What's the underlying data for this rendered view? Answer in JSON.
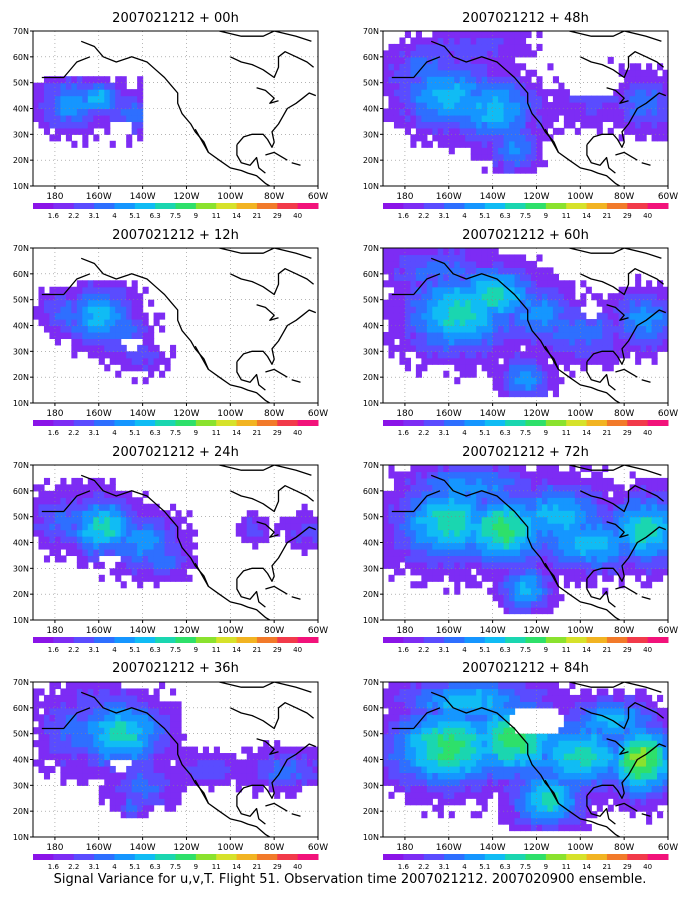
{
  "figure": {
    "caption": "Signal Variance for u,v,T. Flight 51. Observation time 2007021212. 2007020900 ensemble.",
    "lat_ticks": [
      "70N",
      "60N",
      "50N",
      "40N",
      "30N",
      "20N",
      "10N"
    ],
    "lon_ticks": [
      "180",
      "160W",
      "140W",
      "120W",
      "100W",
      "80W",
      "60W"
    ],
    "colorbar_values": [
      "1.6",
      "2.2",
      "3.1",
      "4",
      "5.1",
      "6.3",
      "7.5",
      "9",
      "11",
      "14",
      "21",
      "29",
      "40"
    ],
    "colorbar_colors": [
      "#8a14e8",
      "#7d2cf4",
      "#5a4cff",
      "#2e6fff",
      "#1596ff",
      "#10bcf4",
      "#1ad6b0",
      "#2ee06a",
      "#8ae22e",
      "#d6e22a",
      "#f2b422",
      "#f27a2a",
      "#f23a4a",
      "#f2127a"
    ],
    "land_color": "#000000",
    "grid_style": "dotted"
  },
  "chart_data": [
    {
      "type": "heatmap",
      "title": "2007021212 + 00h",
      "lead_hours": 0,
      "position": "left column, row 1"
    },
    {
      "type": "heatmap",
      "title": "2007021212 + 48h",
      "lead_hours": 48,
      "position": "right column, row 1"
    },
    {
      "type": "heatmap",
      "title": "2007021212 + 12h",
      "lead_hours": 12,
      "position": "left column, row 2"
    },
    {
      "type": "heatmap",
      "title": "2007021212 + 60h",
      "lead_hours": 60,
      "position": "right column, row 2"
    },
    {
      "type": "heatmap",
      "title": "2007021212 + 24h",
      "lead_hours": 24,
      "position": "left column, row 3"
    },
    {
      "type": "heatmap",
      "title": "2007021212 + 72h",
      "lead_hours": 72,
      "position": "right column, row 3"
    },
    {
      "type": "heatmap",
      "title": "2007021212 + 36h",
      "lead_hours": 36,
      "position": "left column, row 4"
    },
    {
      "type": "heatmap",
      "title": "2007021212 + 84h",
      "lead_hours": 84,
      "position": "right column, row 4"
    }
  ]
}
